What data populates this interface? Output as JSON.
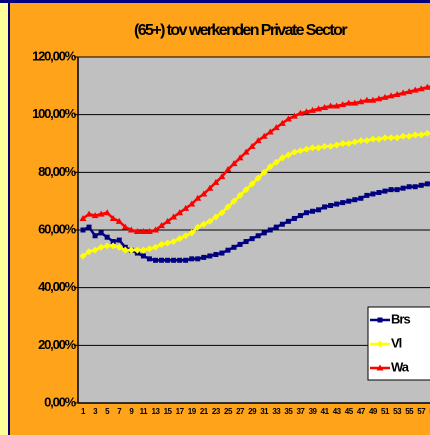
{
  "chart_data": {
    "type": "line",
    "title": "(65+) tov werkenden Private Sector",
    "categories": [
      "1",
      null,
      "3",
      null,
      "5",
      null,
      "7",
      null,
      "9",
      null,
      "11",
      null,
      "13",
      null,
      "15",
      null,
      "17",
      null,
      "19",
      null,
      "21",
      null,
      "23",
      null,
      "25",
      null,
      "27",
      null,
      "29",
      null,
      "31",
      null,
      "33",
      null,
      "35",
      null,
      "37",
      null,
      "39",
      null,
      "41",
      null,
      "43",
      null,
      "45",
      null,
      "47",
      null,
      "49",
      null,
      "51",
      null,
      "53",
      null,
      "55",
      null,
      "57",
      null,
      "59"
    ],
    "series": [
      {
        "name": "Brs",
        "color": "#000080",
        "marker": "square",
        "values": [
          60,
          61,
          58,
          59,
          57.5,
          56,
          56.5,
          54,
          53,
          52,
          51,
          50,
          49.5,
          49.5,
          49.5,
          49.5,
          49.5,
          49.5,
          50,
          50,
          50.5,
          51,
          51.5,
          52,
          53,
          54,
          55,
          56,
          57,
          58,
          59,
          60,
          61,
          62,
          63,
          64,
          65,
          66,
          66.5,
          67,
          68,
          68.5,
          69,
          69.5,
          70,
          70.5,
          71,
          72,
          72.5,
          73,
          73.5,
          74,
          74,
          74.5,
          75,
          75,
          75.5,
          76,
          76.5
        ]
      },
      {
        "name": "Vl",
        "color": "#ffff00",
        "marker": "diamond",
        "values": [
          51,
          52.5,
          53,
          54,
          54.5,
          54.5,
          54,
          53,
          53,
          53,
          53,
          53.5,
          54,
          55,
          55.5,
          56,
          57,
          58,
          59,
          61,
          62,
          63,
          64.5,
          66,
          68,
          70,
          72,
          74,
          76,
          78,
          80,
          82,
          83.5,
          85,
          86,
          87,
          87.5,
          88,
          88.5,
          88.5,
          89,
          89,
          89.5,
          90,
          90,
          90.5,
          91,
          91,
          91.5,
          91.5,
          92,
          92,
          92,
          92.5,
          92.5,
          93,
          93,
          93.5,
          93.5
        ]
      },
      {
        "name": "Wa",
        "color": "#ff0000",
        "marker": "triangle",
        "values": [
          64,
          65.5,
          65,
          65.5,
          66,
          64,
          63,
          61,
          60,
          59.5,
          59.5,
          59.5,
          60,
          61.5,
          63,
          64.5,
          66,
          67.5,
          69,
          71,
          72.5,
          74.5,
          76.5,
          78.5,
          81,
          83,
          85,
          87,
          89,
          91,
          92.5,
          94,
          95.5,
          97,
          98.5,
          99.5,
          100.5,
          101,
          101.5,
          102,
          102.5,
          103,
          103,
          103.5,
          104,
          104,
          104.5,
          105,
          105,
          105.5,
          106,
          106.5,
          107,
          107.5,
          108,
          108.5,
          109,
          109.5,
          110
        ]
      }
    ],
    "ylim": [
      0,
      120
    ],
    "yticks": [
      {
        "value": 0,
        "label": "0,00%"
      },
      {
        "value": 20,
        "label": "20,00%"
      },
      {
        "value": 40,
        "label": "40,00%"
      },
      {
        "value": 60,
        "label": "60,00%"
      },
      {
        "value": 80,
        "label": "80,00%"
      },
      {
        "value": 100,
        "label": "100,00%"
      },
      {
        "value": 120,
        "label": "120,00%"
      }
    ],
    "grid": true,
    "legend": "right",
    "plot_background": "#c0c0c0",
    "background": "#ffa31a"
  }
}
